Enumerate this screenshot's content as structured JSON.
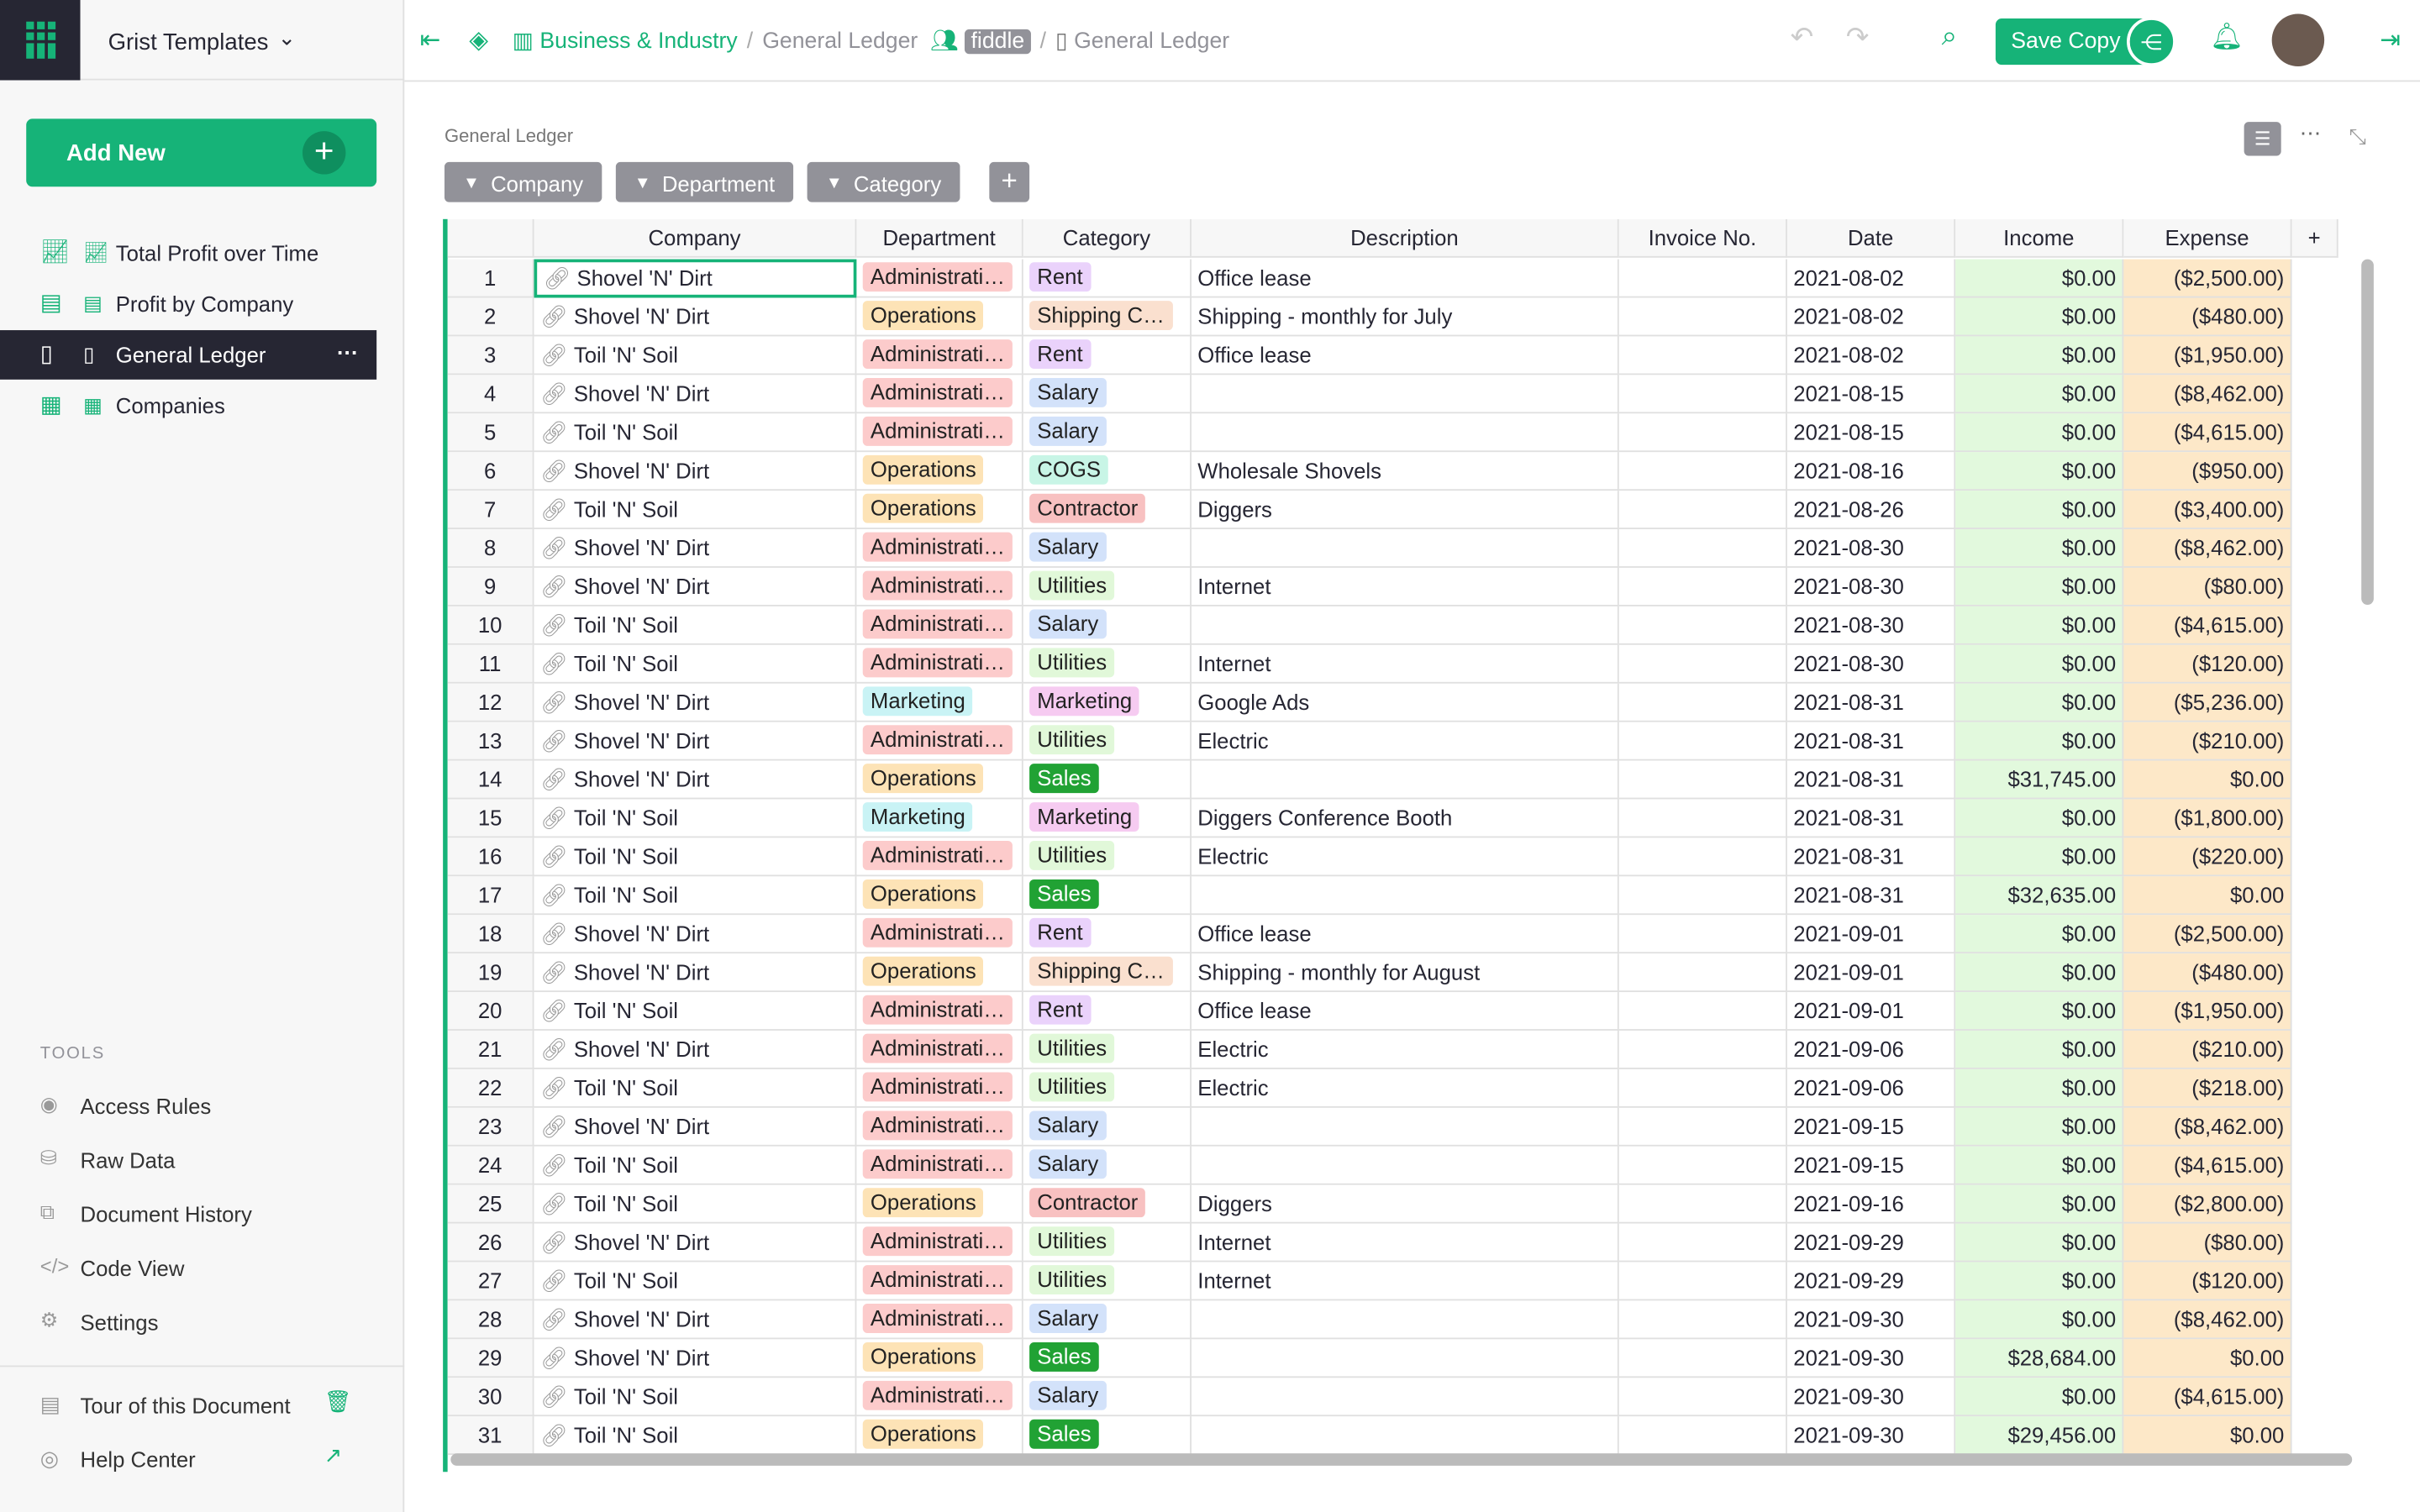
{
  "sidebar": {
    "org": "Grist Templates",
    "add_new": "Add New",
    "pages": [
      "Total Profit over Time",
      "Profit by Company",
      "General Ledger",
      "Companies"
    ],
    "tools_heading": "TOOLS",
    "tools": [
      "Access Rules",
      "Raw Data",
      "Document History",
      "Code View",
      "Settings"
    ],
    "footer": [
      "Tour of this Document",
      "Help Center"
    ]
  },
  "topbar": {
    "breadcrumb": [
      "Business & Industry",
      "General Ledger",
      "fiddle",
      "General Ledger"
    ],
    "save_copy": "Save Copy"
  },
  "section": {
    "title": "General Ledger",
    "filters": [
      "Company",
      "Department",
      "Category"
    ],
    "add_filter": "+"
  },
  "table": {
    "columns": [
      "Company",
      "Department",
      "Category",
      "Description",
      "Invoice No.",
      "Date",
      "Income",
      "Expense"
    ],
    "add_column": "+",
    "income_color": "#e2f9dd",
    "expense_color": "#fde8c8",
    "department_colors": {
      "Administrati…": {
        "bg": "#fccbcb",
        "fg": "#222"
      },
      "Operations": {
        "bg": "#fde3b6",
        "fg": "#222"
      },
      "Marketing": {
        "bg": "#c9f3f5",
        "fg": "#222"
      }
    },
    "category_colors": {
      "Rent": {
        "bg": "#ead2fb",
        "fg": "#222"
      },
      "Shipping C…": {
        "bg": "#fae0cf",
        "fg": "#222"
      },
      "Salary": {
        "bg": "#d3e2fa",
        "fg": "#222"
      },
      "COGS": {
        "bg": "#c8f5e6",
        "fg": "#222"
      },
      "Contractor": {
        "bg": "#f8c1c1",
        "fg": "#222"
      },
      "Utilities": {
        "bg": "#e1f8d9",
        "fg": "#222"
      },
      "Marketing": {
        "bg": "#f6cbf1",
        "fg": "#222"
      },
      "Sales": {
        "bg": "#21a234",
        "fg": "#fff"
      }
    },
    "rows": [
      [
        1,
        "Shovel 'N' Dirt",
        "Administrati…",
        "Rent",
        "Office lease",
        null,
        "2021-08-02",
        "$0.00",
        "($2,500.00)"
      ],
      [
        2,
        "Shovel 'N' Dirt",
        "Operations",
        "Shipping C…",
        "Shipping - monthly for July",
        null,
        "2021-08-02",
        "$0.00",
        "($480.00)"
      ],
      [
        3,
        "Toil 'N' Soil",
        "Administrati…",
        "Rent",
        "Office lease",
        null,
        "2021-08-02",
        "$0.00",
        "($1,950.00)"
      ],
      [
        4,
        "Shovel 'N' Dirt",
        "Administrati…",
        "Salary",
        null,
        null,
        "2021-08-15",
        "$0.00",
        "($8,462.00)"
      ],
      [
        5,
        "Toil 'N' Soil",
        "Administrati…",
        "Salary",
        null,
        null,
        "2021-08-15",
        "$0.00",
        "($4,615.00)"
      ],
      [
        6,
        "Shovel 'N' Dirt",
        "Operations",
        "COGS",
        "Wholesale Shovels",
        null,
        "2021-08-16",
        "$0.00",
        "($950.00)"
      ],
      [
        7,
        "Toil 'N' Soil",
        "Operations",
        "Contractor",
        "Diggers",
        null,
        "2021-08-26",
        "$0.00",
        "($3,400.00)"
      ],
      [
        8,
        "Shovel 'N' Dirt",
        "Administrati…",
        "Salary",
        null,
        null,
        "2021-08-30",
        "$0.00",
        "($8,462.00)"
      ],
      [
        9,
        "Shovel 'N' Dirt",
        "Administrati…",
        "Utilities",
        "Internet",
        null,
        "2021-08-30",
        "$0.00",
        "($80.00)"
      ],
      [
        10,
        "Toil 'N' Soil",
        "Administrati…",
        "Salary",
        null,
        null,
        "2021-08-30",
        "$0.00",
        "($4,615.00)"
      ],
      [
        11,
        "Toil 'N' Soil",
        "Administrati…",
        "Utilities",
        "Internet",
        null,
        "2021-08-30",
        "$0.00",
        "($120.00)"
      ],
      [
        12,
        "Shovel 'N' Dirt",
        "Marketing",
        "Marketing",
        "Google Ads",
        null,
        "2021-08-31",
        "$0.00",
        "($5,236.00)"
      ],
      [
        13,
        "Shovel 'N' Dirt",
        "Administrati…",
        "Utilities",
        "Electric",
        null,
        "2021-08-31",
        "$0.00",
        "($210.00)"
      ],
      [
        14,
        "Shovel 'N' Dirt",
        "Operations",
        "Sales",
        null,
        null,
        "2021-08-31",
        "$31,745.00",
        "$0.00"
      ],
      [
        15,
        "Toil 'N' Soil",
        "Marketing",
        "Marketing",
        "Diggers Conference Booth",
        null,
        "2021-08-31",
        "$0.00",
        "($1,800.00)"
      ],
      [
        16,
        "Toil 'N' Soil",
        "Administrati…",
        "Utilities",
        "Electric",
        null,
        "2021-08-31",
        "$0.00",
        "($220.00)"
      ],
      [
        17,
        "Toil 'N' Soil",
        "Operations",
        "Sales",
        null,
        null,
        "2021-08-31",
        "$32,635.00",
        "$0.00"
      ],
      [
        18,
        "Shovel 'N' Dirt",
        "Administrati…",
        "Rent",
        "Office lease",
        null,
        "2021-09-01",
        "$0.00",
        "($2,500.00)"
      ],
      [
        19,
        "Shovel 'N' Dirt",
        "Operations",
        "Shipping C…",
        "Shipping - monthly for August",
        null,
        "2021-09-01",
        "$0.00",
        "($480.00)"
      ],
      [
        20,
        "Toil 'N' Soil",
        "Administrati…",
        "Rent",
        "Office lease",
        null,
        "2021-09-01",
        "$0.00",
        "($1,950.00)"
      ],
      [
        21,
        "Shovel 'N' Dirt",
        "Administrati…",
        "Utilities",
        "Electric",
        null,
        "2021-09-06",
        "$0.00",
        "($210.00)"
      ],
      [
        22,
        "Toil 'N' Soil",
        "Administrati…",
        "Utilities",
        "Electric",
        null,
        "2021-09-06",
        "$0.00",
        "($218.00)"
      ],
      [
        23,
        "Shovel 'N' Dirt",
        "Administrati…",
        "Salary",
        null,
        null,
        "2021-09-15",
        "$0.00",
        "($8,462.00)"
      ],
      [
        24,
        "Toil 'N' Soil",
        "Administrati…",
        "Salary",
        null,
        null,
        "2021-09-15",
        "$0.00",
        "($4,615.00)"
      ],
      [
        25,
        "Toil 'N' Soil",
        "Operations",
        "Contractor",
        "Diggers",
        null,
        "2021-09-16",
        "$0.00",
        "($2,800.00)"
      ],
      [
        26,
        "Shovel 'N' Dirt",
        "Administrati…",
        "Utilities",
        "Internet",
        null,
        "2021-09-29",
        "$0.00",
        "($80.00)"
      ],
      [
        27,
        "Toil 'N' Soil",
        "Administrati…",
        "Utilities",
        "Internet",
        null,
        "2021-09-29",
        "$0.00",
        "($120.00)"
      ],
      [
        28,
        "Shovel 'N' Dirt",
        "Administrati…",
        "Salary",
        null,
        null,
        "2021-09-30",
        "$0.00",
        "($8,462.00)"
      ],
      [
        29,
        "Shovel 'N' Dirt",
        "Operations",
        "Sales",
        null,
        null,
        "2021-09-30",
        "$28,684.00",
        "$0.00"
      ],
      [
        30,
        "Toil 'N' Soil",
        "Administrati…",
        "Salary",
        null,
        null,
        "2021-09-30",
        "$0.00",
        "($4,615.00)"
      ],
      [
        31,
        "Toil 'N' Soil",
        "Operations",
        "Sales",
        null,
        null,
        "2021-09-30",
        "$29,456.00",
        "$0.00"
      ]
    ]
  }
}
